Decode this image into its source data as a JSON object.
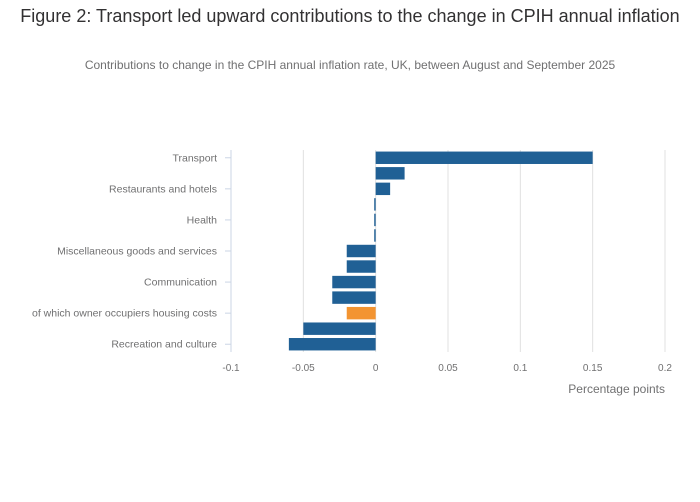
{
  "header": {
    "title": "Figure 2: Transport led upward contributions to the change in CPIH annual inflation",
    "subtitle": "Contributions to change in the CPIH annual inflation rate, UK, between August and September 2025"
  },
  "colors": {
    "bar": "#206095",
    "highlight": "#f39431",
    "gridline": "#e0e0e0",
    "axis_line": "#cbd5e4",
    "text": "#707071"
  },
  "chart_data": {
    "type": "bar",
    "orientation": "horizontal",
    "title": "Figure 2: Transport led upward contributions to the change in CPIH annual inflation",
    "subtitle": "Contributions to change in the CPIH annual inflation rate, UK, between August and September 2025",
    "xlabel": "Percentage points",
    "ylabel": "",
    "xlim": [
      -0.1,
      0.2
    ],
    "xticks": [
      -0.1,
      -0.05,
      0,
      0.05,
      0.1,
      0.15,
      0.2
    ],
    "xtick_labels": [
      "-0.1",
      "-0.05",
      "0",
      "0.05",
      "0.1",
      "0.15",
      "0.2"
    ],
    "grid": true,
    "legend": "none",
    "categories": [
      {
        "label": "Transport",
        "shown": true,
        "value": 0.15,
        "highlight": false
      },
      {
        "label": "",
        "shown": false,
        "value": 0.02,
        "highlight": false
      },
      {
        "label": "Restaurants and hotels",
        "shown": true,
        "value": 0.01,
        "highlight": false
      },
      {
        "label": "",
        "shown": false,
        "value": -0.001,
        "highlight": false
      },
      {
        "label": "Health",
        "shown": true,
        "value": -0.001,
        "highlight": false
      },
      {
        "label": "",
        "shown": false,
        "value": -0.001,
        "highlight": false
      },
      {
        "label": "Miscellaneous goods and services",
        "shown": true,
        "value": -0.02,
        "highlight": false
      },
      {
        "label": "",
        "shown": false,
        "value": -0.02,
        "highlight": false
      },
      {
        "label": "Communication",
        "shown": true,
        "value": -0.03,
        "highlight": false
      },
      {
        "label": "",
        "shown": false,
        "value": -0.03,
        "highlight": false
      },
      {
        "label": "of which owner occupiers housing costs",
        "shown": true,
        "value": -0.02,
        "highlight": true
      },
      {
        "label": "",
        "shown": false,
        "value": -0.05,
        "highlight": false
      },
      {
        "label": "Recreation and culture",
        "shown": true,
        "value": -0.06,
        "highlight": false
      }
    ]
  }
}
